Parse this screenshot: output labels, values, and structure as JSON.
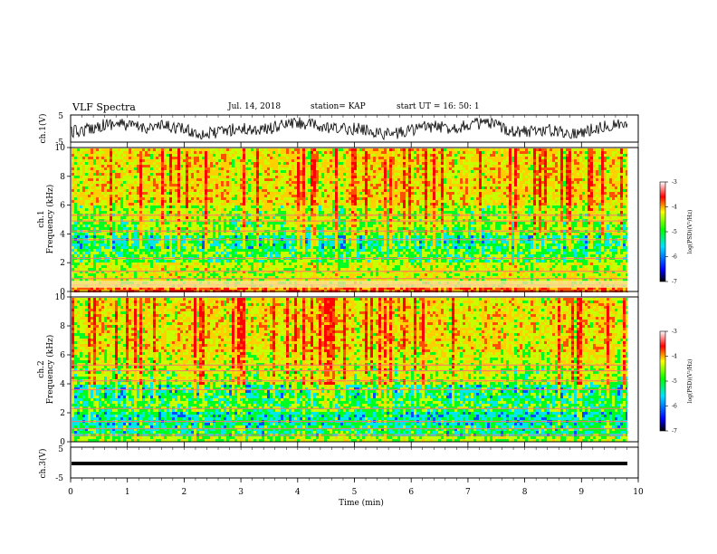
{
  "header": {
    "title": "VLF Spectra",
    "date": "Jul. 14, 2018",
    "station": "station= KAP",
    "start": "start UT =  16: 50: 1"
  },
  "chart_data": [
    {
      "type": "line",
      "panel": "ch1-waveform",
      "ylabel": "ch.1(V)",
      "yticks": [
        "5",
        "-5"
      ],
      "ylim": [
        -5,
        5
      ],
      "series": [
        {
          "values_note": "noisy",
          "x": [
            0,
            10
          ],
          "y_range": [
            -2.5,
            2.5
          ]
        }
      ]
    },
    {
      "type": "heatmap",
      "panel": "ch1-spectrogram",
      "ylabel": "ch.1",
      "ylabel2": "Frequency (kHz)",
      "ylim": [
        0,
        10
      ],
      "yticks": [
        "0",
        "2",
        "4",
        "6",
        "8",
        "10"
      ],
      "colorbar": {
        "label": "log(PSD)(V²/Hz)",
        "range": [
          -7,
          -3
        ],
        "ticks": [
          "-3",
          "-4",
          "-5",
          "-6",
          "-7"
        ]
      }
    },
    {
      "type": "heatmap",
      "panel": "ch2-spectrogram",
      "ylabel": "ch.2",
      "ylabel2": "Frequency (kHz)",
      "ylim": [
        0,
        10
      ],
      "yticks": [
        "0",
        "2",
        "4",
        "6",
        "8",
        "10"
      ],
      "colorbar": {
        "label": "log(PSD)(V²/Hz)",
        "range": [
          -7,
          -3
        ],
        "ticks": [
          "-3",
          "-4",
          "-5",
          "-6",
          "-7"
        ]
      }
    },
    {
      "type": "line",
      "panel": "ch3-waveform",
      "ylabel": "ch.3(V)",
      "yticks": [
        "5",
        "-5"
      ],
      "ylim": [
        -5,
        5
      ],
      "series": [
        {
          "x": [
            0,
            9.8
          ],
          "y": [
            0,
            0
          ]
        }
      ]
    }
  ],
  "xaxis": {
    "label": "Time (min)",
    "xlim": [
      0,
      10
    ],
    "ticks": [
      "0",
      "1",
      "2",
      "3",
      "4",
      "5",
      "6",
      "7",
      "8",
      "9",
      "10"
    ]
  },
  "colors": {
    "background": "#ffffff",
    "axis": "#000000",
    "waveform": "#000000"
  }
}
